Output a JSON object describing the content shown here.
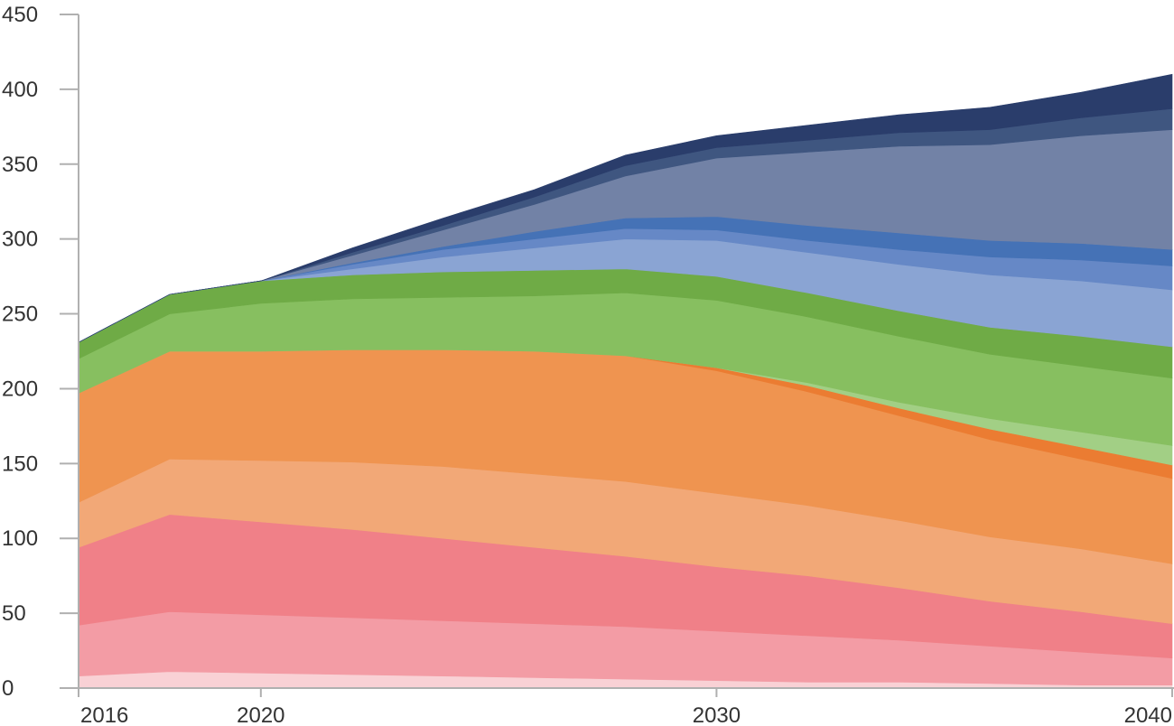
{
  "chart_data": {
    "type": "area",
    "stacked": true,
    "x": [
      2016,
      2018,
      2020,
      2022,
      2024,
      2026,
      2028,
      2030,
      2032,
      2034,
      2036,
      2038,
      2040
    ],
    "x_ticks": [
      {
        "value": 2016,
        "label": "2016"
      },
      {
        "value": 2020,
        "label": "2020"
      },
      {
        "value": 2030,
        "label": "2030"
      },
      {
        "value": 2040,
        "label": "2040"
      }
    ],
    "y_ticks": [
      0,
      50,
      100,
      150,
      200,
      250,
      300,
      350,
      400,
      450
    ],
    "ylim": [
      0,
      450
    ],
    "xlim": [
      2016,
      2040
    ],
    "grid": false,
    "legend": "none",
    "series": [
      {
        "color": "#f9d1d5",
        "values": [
          8,
          11,
          10,
          9,
          8,
          7,
          6,
          5,
          4,
          4,
          3,
          2,
          2
        ]
      },
      {
        "color": "#f39ca5",
        "values": [
          34,
          40,
          39,
          38,
          37,
          36,
          35,
          33,
          31,
          28,
          25,
          22,
          18
        ]
      },
      {
        "color": "#f08088",
        "values": [
          52,
          65,
          62,
          59,
          55,
          51,
          47,
          43,
          40,
          35,
          30,
          27,
          23
        ]
      },
      {
        "color": "#f2a877",
        "values": [
          30,
          37,
          41,
          45,
          48,
          49,
          50,
          49,
          47,
          45,
          43,
          42,
          40
        ]
      },
      {
        "color": "#ef9450",
        "values": [
          73,
          72,
          73,
          75,
          78,
          82,
          84,
          82,
          76,
          70,
          65,
          60,
          57
        ]
      },
      {
        "color": "#eb7c32",
        "values": [
          0,
          0,
          0,
          0,
          0,
          0,
          0,
          2,
          4,
          5,
          7,
          8,
          9
        ]
      },
      {
        "color": "#a2cf85",
        "values": [
          0,
          0,
          0,
          0,
          0,
          0,
          0,
          0,
          2,
          4,
          7,
          10,
          13
        ]
      },
      {
        "color": "#87bf60",
        "values": [
          23,
          25,
          32,
          34,
          35,
          37,
          42,
          45,
          44,
          44,
          43,
          44,
          45
        ]
      },
      {
        "color": "#6fab46",
        "values": [
          11,
          13,
          15,
          16,
          17,
          17,
          16,
          16,
          16,
          17,
          18,
          20,
          21
        ]
      },
      {
        "color": "#8aa4d3",
        "values": [
          0,
          0,
          0,
          4,
          10,
          15,
          20,
          24,
          27,
          31,
          35,
          37,
          38
        ]
      },
      {
        "color": "#6688c6",
        "values": [
          0,
          0,
          0,
          3,
          5,
          6,
          7,
          7,
          8,
          10,
          12,
          14,
          16
        ]
      },
      {
        "color": "#4572b6",
        "values": [
          0,
          0,
          0,
          1,
          2,
          5,
          7,
          9,
          10,
          11,
          11,
          11,
          11
        ]
      },
      {
        "color": "#7282a6",
        "values": [
          0,
          0,
          0,
          5,
          11,
          18,
          28,
          39,
          49,
          58,
          64,
          72,
          80
        ]
      },
      {
        "color": "#3f5680",
        "values": [
          0,
          0,
          0,
          2,
          3,
          5,
          7,
          7,
          8,
          9,
          10,
          12,
          14
        ]
      },
      {
        "color": "#2a3d6b",
        "values": [
          0,
          0,
          0,
          3,
          5,
          5,
          7,
          8,
          10,
          12,
          15,
          17,
          23
        ]
      }
    ]
  }
}
